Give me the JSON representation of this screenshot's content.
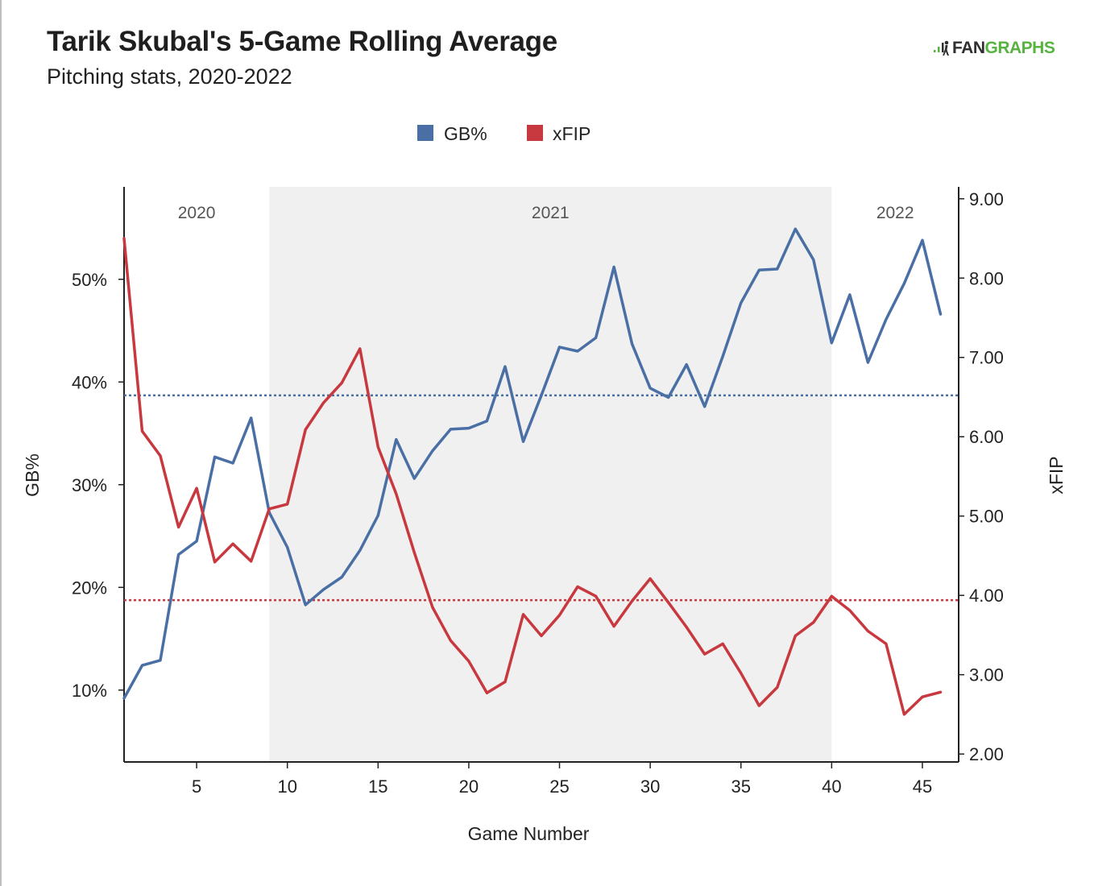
{
  "header": {
    "title": "Tarik Skubal's 5-Game Rolling Average",
    "subtitle": "Pitching stats, 2020-2022",
    "logo_fan": "FAN",
    "logo_graphs": "GRAPHS"
  },
  "chart_data": {
    "type": "line",
    "xlabel": "Game Number",
    "ylabel_left": "GB%",
    "ylabel_right": "xFIP",
    "xlim": [
      1,
      47
    ],
    "x_ticks": [
      5,
      10,
      15,
      20,
      25,
      30,
      35,
      40,
      45
    ],
    "ylim_left": [
      3,
      59
    ],
    "y_ticks_left": [
      {
        "value": 10,
        "label": "10%"
      },
      {
        "value": 20,
        "label": "20%"
      },
      {
        "value": 30,
        "label": "30%"
      },
      {
        "value": 40,
        "label": "40%"
      },
      {
        "value": 50,
        "label": "50%"
      }
    ],
    "ylim_right": [
      1.9,
      9.15
    ],
    "y_ticks_right": [
      {
        "value": 2,
        "label": "2.00"
      },
      {
        "value": 3,
        "label": "3.00"
      },
      {
        "value": 4,
        "label": "4.00"
      },
      {
        "value": 5,
        "label": "5.00"
      },
      {
        "value": 6,
        "label": "6.00"
      },
      {
        "value": 7,
        "label": "7.00"
      },
      {
        "value": 8,
        "label": "8.00"
      },
      {
        "value": 9,
        "label": "9.00"
      }
    ],
    "legend_position": "top-center",
    "season_bands": [
      {
        "label": "2020",
        "start": 1,
        "end": 9,
        "shaded": false
      },
      {
        "label": "2021",
        "start": 9,
        "end": 40,
        "shaded": true
      },
      {
        "label": "2022",
        "start": 40,
        "end": 47,
        "shaded": false
      }
    ],
    "series": [
      {
        "name": "GB%",
        "axis": "left",
        "color": "#4a6fa5",
        "reference_line": 38.7,
        "x": [
          1,
          2,
          3,
          4,
          5,
          6,
          7,
          8,
          9,
          10,
          11,
          12,
          13,
          14,
          15,
          16,
          17,
          18,
          19,
          20,
          21,
          22,
          23,
          24,
          25,
          26,
          27,
          28,
          29,
          30,
          31,
          32,
          33,
          34,
          35,
          36,
          37,
          38,
          39,
          40,
          41,
          42,
          43,
          44,
          45,
          46
        ],
        "values": [
          9.2,
          12.4,
          12.9,
          23.2,
          24.5,
          32.7,
          32.1,
          36.5,
          27.3,
          23.9,
          18.3,
          19.8,
          21.0,
          23.6,
          27.0,
          34.4,
          30.6,
          33.3,
          35.4,
          35.5,
          36.2,
          41.5,
          34.2,
          38.7,
          43.4,
          43.0,
          44.3,
          51.2,
          43.7,
          39.4,
          38.5,
          41.7,
          37.6,
          42.5,
          47.7,
          50.9,
          51.0,
          54.9,
          51.9,
          43.8,
          48.5,
          41.9,
          46.1,
          49.6,
          53.8,
          46.6
        ]
      },
      {
        "name": "xFIP",
        "axis": "right",
        "color": "#c8383f",
        "reference_line": 3.94,
        "x": [
          1,
          2,
          3,
          4,
          5,
          6,
          7,
          8,
          9,
          10,
          11,
          12,
          13,
          14,
          15,
          16,
          17,
          18,
          19,
          20,
          21,
          22,
          23,
          24,
          25,
          26,
          27,
          28,
          29,
          30,
          31,
          32,
          33,
          34,
          35,
          36,
          37,
          38,
          39,
          40,
          41,
          42,
          43,
          44,
          45,
          46
        ],
        "values": [
          8.5,
          6.07,
          5.76,
          4.86,
          5.35,
          4.42,
          4.65,
          4.43,
          5.09,
          5.15,
          6.09,
          6.43,
          6.68,
          7.11,
          5.87,
          5.28,
          4.54,
          3.85,
          3.43,
          3.17,
          2.77,
          2.91,
          3.76,
          3.49,
          3.75,
          4.11,
          3.99,
          3.61,
          3.93,
          4.21,
          3.91,
          3.6,
          3.26,
          3.39,
          3.02,
          2.61,
          2.84,
          3.49,
          3.66,
          3.99,
          3.81,
          3.55,
          3.39,
          2.5,
          2.72,
          2.78
        ]
      }
    ]
  }
}
